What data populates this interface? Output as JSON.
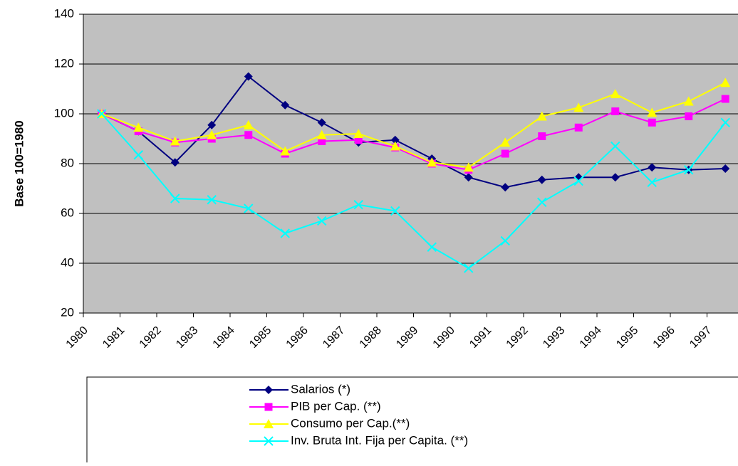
{
  "chart_data": {
    "type": "line",
    "y_label": "Base 100=1980",
    "categories": [
      "1980",
      "1981",
      "1982",
      "1983",
      "1984",
      "1985",
      "1986",
      "1987",
      "1988",
      "1989",
      "1990",
      "1991",
      "1992",
      "1993",
      "1994",
      "1995",
      "1996",
      "1997"
    ],
    "series": [
      {
        "name": "Salarios (*)",
        "color": "#000080",
        "marker": "diamond",
        "values": [
          100,
          93,
          80.5,
          95.5,
          115,
          103.5,
          96.5,
          88.5,
          89.5,
          82,
          74.5,
          70.5,
          73.5,
          74.5,
          74.5,
          78.5,
          77.5,
          78
        ]
      },
      {
        "name": "PIB per Cap. (**)",
        "color": "#ff00ff",
        "marker": "square",
        "values": [
          100,
          93,
          88.5,
          90,
          91.5,
          84,
          89,
          89.5,
          86.5,
          80,
          77.5,
          84,
          91,
          94.5,
          101,
          96.5,
          99,
          106
        ]
      },
      {
        "name": "Consumo per Cap.(**)",
        "color": "#ffff00",
        "marker": "triangle",
        "values": [
          100,
          94.5,
          89,
          91.5,
          95.5,
          85,
          91.5,
          92,
          87,
          80.5,
          78.5,
          88.5,
          99,
          102.5,
          108,
          100.5,
          105,
          112.5
        ]
      },
      {
        "name": "Inv. Bruta Int. Fija  per Capita. (**)",
        "color": "#00ffff",
        "marker": "x",
        "values": [
          100,
          83.5,
          66,
          65.5,
          62,
          52,
          57,
          63.5,
          61,
          46.5,
          38,
          49,
          64.5,
          73,
          87,
          72.5,
          77.5,
          96.5
        ]
      }
    ],
    "ylim": [
      20,
      140
    ],
    "yticks": [
      20,
      40,
      60,
      80,
      100,
      120,
      140
    ],
    "grid": true,
    "legend": "bottom"
  }
}
